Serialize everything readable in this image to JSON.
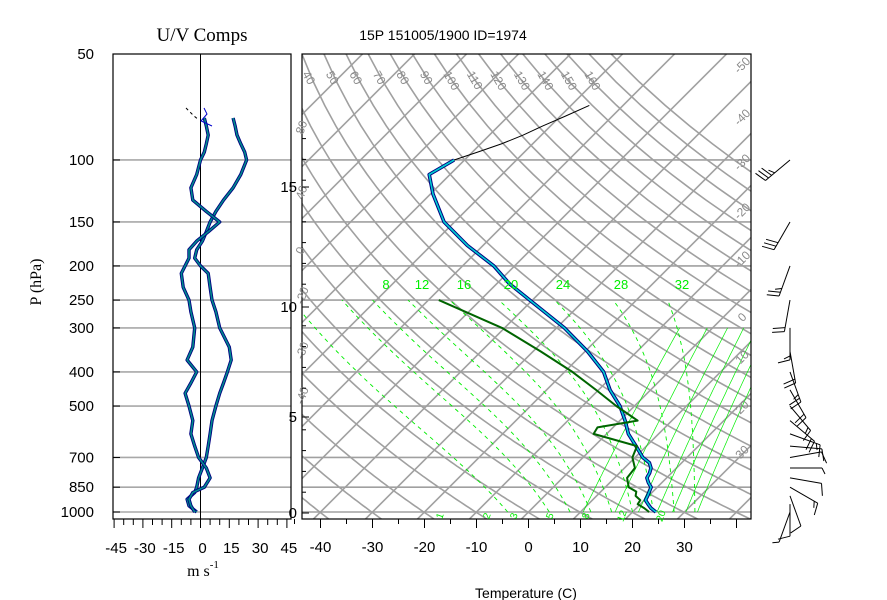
{
  "chart_data": [
    {
      "type": "line",
      "title": "U/V Comps",
      "ylabel": "P (hPa)",
      "xlabel": "m s",
      "xlabel_exponent": "-1",
      "y_scale": "log",
      "ylim": [
        1000,
        50
      ],
      "xlim": [
        -50,
        50
      ],
      "y_ticks": [
        "50",
        "100",
        "150",
        "200",
        "250",
        "300",
        "400",
        "500",
        "700",
        "850",
        "1000"
      ],
      "y_tick_values": [
        50,
        100,
        150,
        200,
        250,
        300,
        400,
        500,
        700,
        850,
        1000
      ],
      "x_ticks": [
        "-45",
        "-30",
        "-15",
        "0",
        "15",
        "30",
        "45"
      ],
      "x_tick_values": [
        -45,
        -30,
        -15,
        0,
        15,
        30,
        45
      ],
      "grid": true,
      "zero_line": true,
      "colors": {
        "u": "#008b8b",
        "v": "#008b8b",
        "outline": "#000080"
      },
      "series": [
        {
          "key": "u",
          "pressure": [
            1000,
            960,
            920,
            880,
            850,
            800,
            750,
            700,
            650,
            600,
            550,
            500,
            460,
            430,
            400,
            370,
            340,
            300,
            270,
            250,
            230,
            210,
            200,
            190,
            180,
            170,
            160,
            150,
            140,
            130,
            120,
            110,
            100,
            95,
            90,
            85,
            80,
            76
          ],
          "values": [
            -2,
            -6,
            -7,
            -3,
            -2,
            -1,
            1,
            3,
            4,
            5,
            6,
            8,
            10,
            12,
            14,
            16,
            15,
            10,
            8,
            6,
            5,
            4,
            0,
            -3,
            -2,
            1,
            3,
            5,
            8,
            12,
            17,
            21,
            24,
            23,
            21,
            19,
            18,
            17
          ]
        },
        {
          "key": "v",
          "pressure": [
            1000,
            960,
            920,
            880,
            850,
            800,
            750,
            700,
            650,
            600,
            550,
            500,
            460,
            430,
            400,
            370,
            340,
            300,
            270,
            250,
            230,
            210,
            200,
            190,
            180,
            170,
            160,
            150,
            140,
            130,
            120,
            110,
            100,
            95,
            90,
            85,
            80,
            76
          ],
          "values": [
            -3,
            -5,
            -6,
            -4,
            2,
            5,
            3,
            -1,
            -3,
            -5,
            -4,
            -6,
            -8,
            -5,
            -2,
            -7,
            -4,
            -3,
            -5,
            -6,
            -9,
            -10,
            -8,
            -6,
            -6,
            -2,
            4,
            10,
            3,
            -4,
            -5,
            -2,
            0,
            2,
            3,
            4,
            3,
            2
          ]
        }
      ]
    },
    {
      "type": "line",
      "title": "15P 151005/1900 ID=1974",
      "xlabel": "Temperature (C)",
      "x_ticks": [
        "-40",
        "-30",
        "-20",
        "-10",
        "0",
        "10",
        "20",
        "30"
      ],
      "x_tick_values": [
        -40,
        -30,
        -20,
        -10,
        0,
        10,
        20,
        30
      ],
      "height_ticks": [
        "0",
        "5",
        "10",
        "15"
      ],
      "height_tick_values": [
        0,
        5,
        10,
        15
      ],
      "isobars_hpa": [
        1000,
        850,
        700,
        500,
        400,
        300,
        250,
        200,
        150,
        100
      ],
      "theta_labels": [
        "40",
        "50",
        "60",
        "70",
        "80",
        "90",
        "100",
        "110",
        "120",
        "130",
        "140",
        "150",
        "160"
      ],
      "isotherm_labels": [
        "-50",
        "-40",
        "-30",
        "-20",
        "-10",
        "0",
        "10",
        "20",
        "30"
      ],
      "dry_adiabat_left_labels": [
        "80",
        "40",
        "0",
        "-20",
        "-30",
        "-40"
      ],
      "mixing_ratio_labels": [
        "8",
        "12",
        "16",
        "20",
        "24",
        "28",
        "32"
      ],
      "moist_adiabat_labels": [
        "1",
        "2",
        "3",
        "5",
        "8",
        "12",
        "20"
      ],
      "colors": {
        "temperature": "#000080",
        "temperature_fill": "#00ced1",
        "dewpoint": "#006400",
        "grid": "#a0a0a0",
        "mixing_ratio": "#00ee00",
        "above_top": "#000000"
      },
      "temperature": {
        "pressure": [
          1000,
          975,
          950,
          925,
          900,
          875,
          850,
          825,
          800,
          775,
          750,
          725,
          700,
          650,
          600,
          550,
          500,
          450,
          400,
          350,
          300,
          250,
          225,
          200,
          175,
          150,
          125,
          110,
          100,
          95,
          90,
          85,
          80,
          75,
          70
        ],
        "temp_c": [
          24.5,
          22.8,
          21.5,
          20.2,
          19.8,
          19.3,
          18.8,
          17.4,
          16.2,
          15.8,
          15.1,
          13.8,
          11.5,
          8.0,
          4.2,
          1.0,
          -2.8,
          -7.8,
          -12.5,
          -19.5,
          -28.5,
          -40.5,
          -47.5,
          -54.0,
          -63.0,
          -72.0,
          -79.5,
          -84.0,
          -82.0,
          -79.0,
          -76.0,
          -73.5,
          -71.5,
          -69.0,
          -66.5
        ]
      },
      "dewpoint": {
        "pressure": [
          1000,
          975,
          950,
          925,
          900,
          875,
          850,
          800,
          750,
          700,
          650,
          600,
          575,
          550,
          500,
          450,
          400,
          350,
          300,
          250
        ],
        "dewpoint_c": [
          23.2,
          21.5,
          19.5,
          19.2,
          17.5,
          16.8,
          14.5,
          12.4,
          12.0,
          9.5,
          8.2,
          -2.5,
          -3.0,
          3.4,
          -3.5,
          -10.5,
          -18.5,
          -28.5,
          -40.5,
          -58.0
        ]
      },
      "wind_barbs": {
        "pressure": [
          1000,
          950,
          900,
          850,
          800,
          750,
          700,
          650,
          600,
          550,
          500,
          450,
          400,
          350,
          300,
          250,
          200,
          150,
          100
        ],
        "speed_kt": [
          5,
          10,
          10,
          15,
          10,
          5,
          10,
          10,
          15,
          20,
          15,
          20,
          25,
          20,
          15,
          20,
          25,
          30,
          35
        ],
        "direction_deg": [
          200,
          180,
          160,
          120,
          100,
          90,
          80,
          95,
          110,
          130,
          140,
          150,
          160,
          170,
          180,
          190,
          200,
          210,
          230
        ]
      }
    }
  ]
}
